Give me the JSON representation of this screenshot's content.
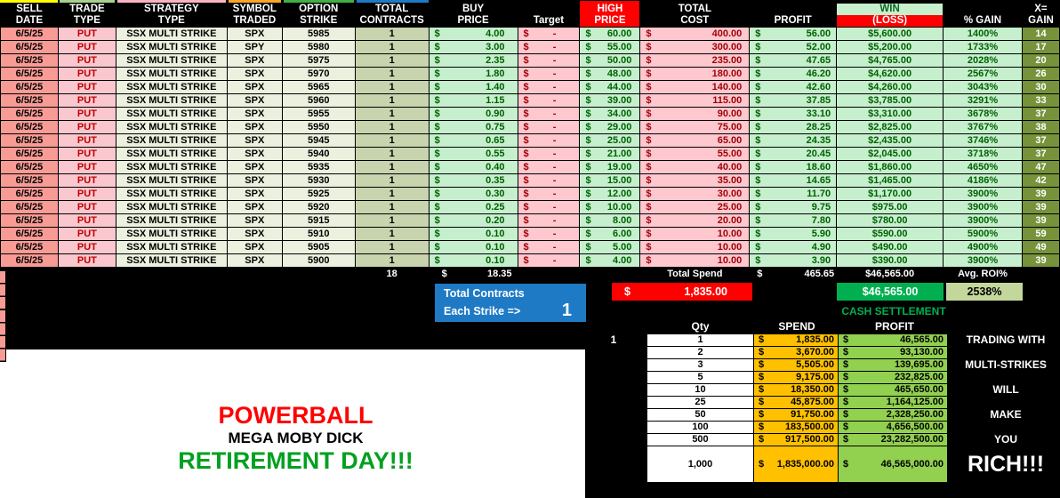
{
  "palette": {
    "accent_red": "#FF0000",
    "accent_green": "#00B050",
    "accent_blue": "#1F7AC5",
    "accent_orange": "#FFC000",
    "accent_lime": "#92D050",
    "good_bg": "#C6EFCE",
    "good_text": "#006100",
    "bad_bg": "#FFC7CE",
    "bad_text": "#9C0006",
    "salmon": "#F89B95",
    "olive": "#76933C",
    "sage": "#C4D79B",
    "tab_strip_colors": [
      "#FFFF00",
      "#A9D18E",
      "#F8B3C1",
      "#FFA428",
      "#3FAF46",
      "#1F7AC5"
    ]
  },
  "main_table": {
    "columns": [
      {
        "id": "sell_date",
        "line1": "SELL",
        "line2": "DATE"
      },
      {
        "id": "trade_type",
        "line1": "TRADE",
        "line2": "TYPE"
      },
      {
        "id": "strategy",
        "line1": "STRATEGY",
        "line2": "TYPE"
      },
      {
        "id": "symbol",
        "line1": "SYMBOL",
        "line2": "TRADED"
      },
      {
        "id": "strike",
        "line1": "OPTION",
        "line2": "STRIKE"
      },
      {
        "id": "contracts",
        "line1": "TOTAL",
        "line2": "CONTRACTS"
      },
      {
        "id": "buy_price",
        "line1": "BUY",
        "line2": "PRICE"
      },
      {
        "id": "target",
        "line1": "",
        "line2": "Target"
      },
      {
        "id": "high_price",
        "line1": "HIGH",
        "line2": "PRICE"
      },
      {
        "id": "total_cost",
        "line1": "TOTAL",
        "line2": "COST"
      },
      {
        "id": "profit",
        "line1": "",
        "line2": "PROFIT"
      },
      {
        "id": "win_loss",
        "line1": "WIN",
        "line2": "(LOSS)"
      },
      {
        "id": "pct_gain",
        "line1": "",
        "line2": "% GAIN"
      },
      {
        "id": "x_gain",
        "line1": "X=",
        "line2": "GAIN"
      }
    ],
    "dollar": "$",
    "rows": [
      {
        "date": "6/5/25",
        "type": "PUT",
        "strategy": "SSX MULTI STRIKE",
        "symbol": "SPX",
        "strike": "5985",
        "contracts": "1",
        "buy": "4.00",
        "target": "-",
        "high": "60.00",
        "cost": "400.00",
        "profit": "56.00",
        "win": "$5,600.00",
        "pct": "1400%",
        "x": "14"
      },
      {
        "date": "6/5/25",
        "type": "PUT",
        "strategy": "SSX MULTI STRIKE",
        "symbol": "SPY",
        "strike": "5980",
        "contracts": "1",
        "buy": "3.00",
        "target": "-",
        "high": "55.00",
        "cost": "300.00",
        "profit": "52.00",
        "win": "$5,200.00",
        "pct": "1733%",
        "x": "17"
      },
      {
        "date": "6/5/25",
        "type": "PUT",
        "strategy": "SSX MULTI STRIKE",
        "symbol": "SPX",
        "strike": "5975",
        "contracts": "1",
        "buy": "2.35",
        "target": "-",
        "high": "50.00",
        "cost": "235.00",
        "profit": "47.65",
        "win": "$4,765.00",
        "pct": "2028%",
        "x": "20"
      },
      {
        "date": "6/5/25",
        "type": "PUT",
        "strategy": "SSX MULTI STRIKE",
        "symbol": "SPX",
        "strike": "5970",
        "contracts": "1",
        "buy": "1.80",
        "target": "-",
        "high": "48.00",
        "cost": "180.00",
        "profit": "46.20",
        "win": "$4,620.00",
        "pct": "2567%",
        "x": "26"
      },
      {
        "date": "6/5/25",
        "type": "PUT",
        "strategy": "SSX MULTI STRIKE",
        "symbol": "SPX",
        "strike": "5965",
        "contracts": "1",
        "buy": "1.40",
        "target": "-",
        "high": "44.00",
        "cost": "140.00",
        "profit": "42.60",
        "win": "$4,260.00",
        "pct": "3043%",
        "x": "30"
      },
      {
        "date": "6/5/25",
        "type": "PUT",
        "strategy": "SSX MULTI STRIKE",
        "symbol": "SPX",
        "strike": "5960",
        "contracts": "1",
        "buy": "1.15",
        "target": "-",
        "high": "39.00",
        "cost": "115.00",
        "profit": "37.85",
        "win": "$3,785.00",
        "pct": "3291%",
        "x": "33"
      },
      {
        "date": "6/5/25",
        "type": "PUT",
        "strategy": "SSX MULTI STRIKE",
        "symbol": "SPX",
        "strike": "5955",
        "contracts": "1",
        "buy": "0.90",
        "target": "-",
        "high": "34.00",
        "cost": "90.00",
        "profit": "33.10",
        "win": "$3,310.00",
        "pct": "3678%",
        "x": "37"
      },
      {
        "date": "6/5/25",
        "type": "PUT",
        "strategy": "SSX MULTI STRIKE",
        "symbol": "SPX",
        "strike": "5950",
        "contracts": "1",
        "buy": "0.75",
        "target": "-",
        "high": "29.00",
        "cost": "75.00",
        "profit": "28.25",
        "win": "$2,825.00",
        "pct": "3767%",
        "x": "38"
      },
      {
        "date": "6/5/25",
        "type": "PUT",
        "strategy": "SSX MULTI STRIKE",
        "symbol": "SPX",
        "strike": "5945",
        "contracts": "1",
        "buy": "0.65",
        "target": "-",
        "high": "25.00",
        "cost": "65.00",
        "profit": "24.35",
        "win": "$2,435.00",
        "pct": "3746%",
        "x": "37"
      },
      {
        "date": "6/5/25",
        "type": "PUT",
        "strategy": "SSX MULTI STRIKE",
        "symbol": "SPX",
        "strike": "5940",
        "contracts": "1",
        "buy": "0.55",
        "target": "-",
        "high": "21.00",
        "cost": "55.00",
        "profit": "20.45",
        "win": "$2,045.00",
        "pct": "3718%",
        "x": "37"
      },
      {
        "date": "6/5/25",
        "type": "PUT",
        "strategy": "SSX MULTI STRIKE",
        "symbol": "SPX",
        "strike": "5935",
        "contracts": "1",
        "buy": "0.40",
        "target": "-",
        "high": "19.00",
        "cost": "40.00",
        "profit": "18.60",
        "win": "$1,860.00",
        "pct": "4650%",
        "x": "47"
      },
      {
        "date": "6/5/25",
        "type": "PUT",
        "strategy": "SSX MULTI STRIKE",
        "symbol": "SPX",
        "strike": "5930",
        "contracts": "1",
        "buy": "0.35",
        "target": "-",
        "high": "15.00",
        "cost": "35.00",
        "profit": "14.65",
        "win": "$1,465.00",
        "pct": "4186%",
        "x": "42"
      },
      {
        "date": "6/5/25",
        "type": "PUT",
        "strategy": "SSX MULTI STRIKE",
        "symbol": "SPX",
        "strike": "5925",
        "contracts": "1",
        "buy": "0.30",
        "target": "-",
        "high": "12.00",
        "cost": "30.00",
        "profit": "11.70",
        "win": "$1,170.00",
        "pct": "3900%",
        "x": "39"
      },
      {
        "date": "6/5/25",
        "type": "PUT",
        "strategy": "SSX MULTI STRIKE",
        "symbol": "SPX",
        "strike": "5920",
        "contracts": "1",
        "buy": "0.25",
        "target": "-",
        "high": "10.00",
        "cost": "25.00",
        "profit": "9.75",
        "win": "$975.00",
        "pct": "3900%",
        "x": "39"
      },
      {
        "date": "6/5/25",
        "type": "PUT",
        "strategy": "SSX MULTI STRIKE",
        "symbol": "SPX",
        "strike": "5915",
        "contracts": "1",
        "buy": "0.20",
        "target": "-",
        "high": "8.00",
        "cost": "20.00",
        "profit": "7.80",
        "win": "$780.00",
        "pct": "3900%",
        "x": "39"
      },
      {
        "date": "6/5/25",
        "type": "PUT",
        "strategy": "SSX MULTI STRIKE",
        "symbol": "SPX",
        "strike": "5910",
        "contracts": "1",
        "buy": "0.10",
        "target": "-",
        "high": "6.00",
        "cost": "10.00",
        "profit": "5.90",
        "win": "$590.00",
        "pct": "5900%",
        "x": "59"
      },
      {
        "date": "6/5/25",
        "type": "PUT",
        "strategy": "SSX MULTI STRIKE",
        "symbol": "SPX",
        "strike": "5905",
        "contracts": "1",
        "buy": "0.10",
        "target": "-",
        "high": "5.00",
        "cost": "10.00",
        "profit": "4.90",
        "win": "$490.00",
        "pct": "4900%",
        "x": "49"
      },
      {
        "date": "6/5/25",
        "type": "PUT",
        "strategy": "SSX MULTI STRIKE",
        "symbol": "SPX",
        "strike": "5900",
        "contracts": "1",
        "buy": "0.10",
        "target": "-",
        "high": "4.00",
        "cost": "10.00",
        "profit": "3.90",
        "win": "$390.00",
        "pct": "3900%",
        "x": "39"
      }
    ],
    "totals": {
      "contracts_total": "18",
      "buy_total": "18.35",
      "spend_label": "Total Spend",
      "profit_total": "465.65",
      "win_total": "$46,565.00",
      "roi_label": "Avg. ROI%"
    }
  },
  "contracts_box": {
    "title": "Total Contracts",
    "label": "Each Strike =>",
    "value": "1"
  },
  "highlight_row": {
    "dollar": "$",
    "spend": "1,835.00",
    "win": "$46,565.00",
    "roi": "2538%"
  },
  "cash_settlement": {
    "marker": "1",
    "title": "CASH SETTLEMENT",
    "headers": {
      "qty": "Qty",
      "spend": "SPEND",
      "profit": "PROFIT"
    },
    "dollar": "$",
    "rows": [
      {
        "qty": "1",
        "spend": "1,835.00",
        "profit": "46,565.00",
        "label": "TRADING WITH"
      },
      {
        "qty": "2",
        "spend": "3,670.00",
        "profit": "93,130.00",
        "label": ""
      },
      {
        "qty": "3",
        "spend": "5,505.00",
        "profit": "139,695.00",
        "label": "MULTI-STRIKES"
      },
      {
        "qty": "5",
        "spend": "9,175.00",
        "profit": "232,825.00",
        "label": ""
      },
      {
        "qty": "10",
        "spend": "18,350.00",
        "profit": "465,650.00",
        "label": "WILL"
      },
      {
        "qty": "25",
        "spend": "45,875.00",
        "profit": "1,164,125.00",
        "label": ""
      },
      {
        "qty": "50",
        "spend": "91,750.00",
        "profit": "2,328,250.00",
        "label": "MAKE"
      },
      {
        "qty": "100",
        "spend": "183,500.00",
        "profit": "4,656,500.00",
        "label": ""
      },
      {
        "qty": "500",
        "spend": "917,500.00",
        "profit": "23,282,500.00",
        "label": "YOU"
      },
      {
        "qty": "1,000",
        "spend": "1,835,000.00",
        "profit": "46,565,000.00",
        "label": "RICH!!!",
        "tall": true
      }
    ]
  },
  "banner": {
    "line1": "POWERBALL",
    "line2": "MEGA MOBY DICK",
    "line3": "RETIREMENT DAY!!!"
  }
}
